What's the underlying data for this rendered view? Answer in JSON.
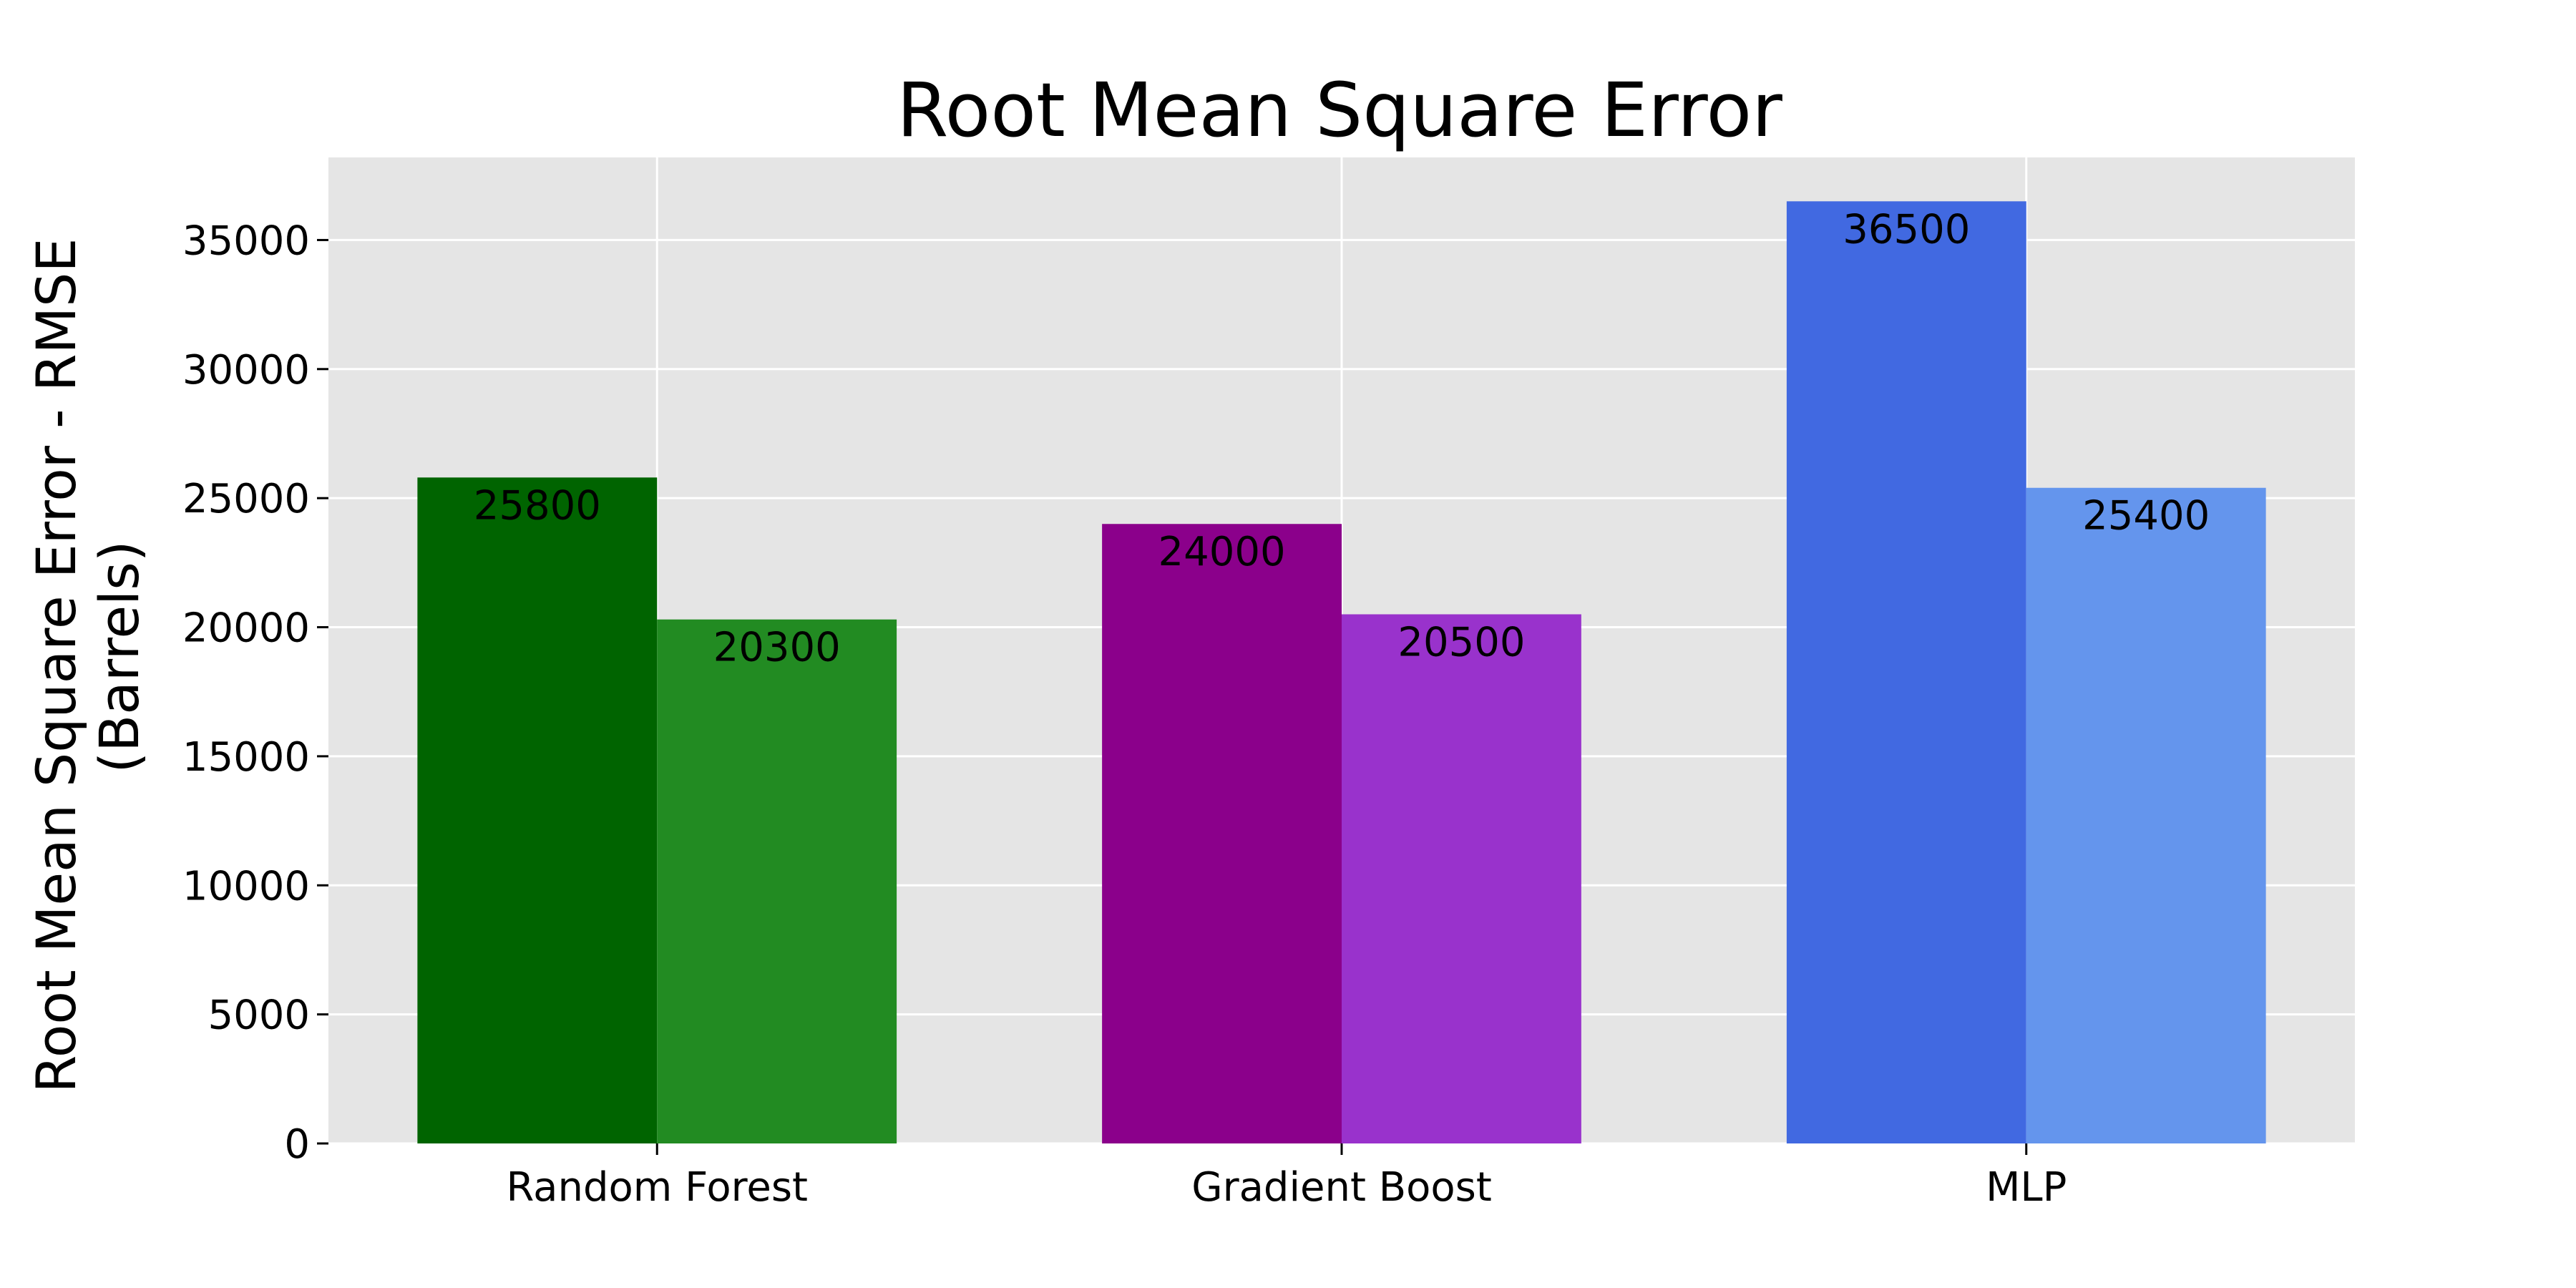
{
  "chart_data": {
    "type": "bar",
    "title": "Root Mean Square Error",
    "xlabel": "",
    "ylabel_lines": [
      "Root Mean Square Error - RMSE",
      "(Barrels)"
    ],
    "categories": [
      "Random Forest",
      "Gradient Boost",
      "MLP"
    ],
    "ylim": [
      0,
      38200
    ],
    "yticks": [
      0,
      5000,
      10000,
      15000,
      20000,
      25000,
      30000,
      35000
    ],
    "grid": true,
    "background": "#e5e5e5",
    "grid_color": "#ffffff",
    "bars": [
      {
        "category": "Random Forest",
        "position": "left",
        "value": 25800,
        "label": "25800",
        "color": "#006400"
      },
      {
        "category": "Random Forest",
        "position": "right",
        "value": 20300,
        "label": "20300",
        "color": "#228b22"
      },
      {
        "category": "Gradient Boost",
        "position": "left",
        "value": 24000,
        "label": "24000",
        "color": "#8b008b"
      },
      {
        "category": "Gradient Boost",
        "position": "right",
        "value": 20500,
        "label": "20500",
        "color": "#9932cc"
      },
      {
        "category": "MLP",
        "position": "left",
        "value": 36500,
        "label": "36500",
        "color": "#4169e1"
      },
      {
        "category": "MLP",
        "position": "right",
        "value": 25400,
        "label": "25400",
        "color": "#6495ed"
      }
    ]
  }
}
